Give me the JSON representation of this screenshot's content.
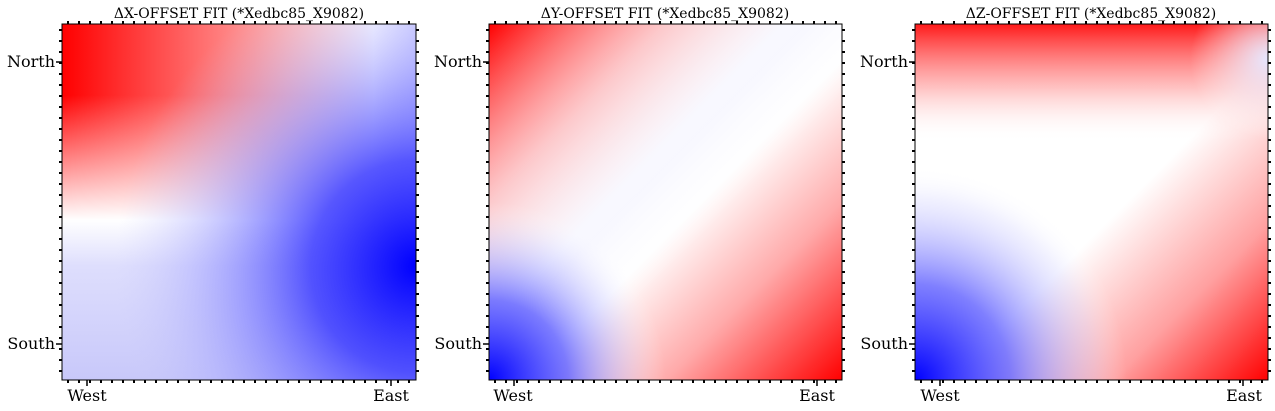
{
  "figure": {
    "panels": [
      {
        "title": "ΔX-OFFSET FIT (*Xedbc85_X9082)",
        "x_tick_labels": [
          "West",
          "East"
        ],
        "y_tick_labels": [
          "North",
          "South"
        ],
        "colors": {
          "top_left": "#ff0000",
          "bottom_left": "#c8c8fa",
          "bottom_right": "#0000ff"
        }
      },
      {
        "title": "ΔY-OFFSET FIT (*Xedbc85_X9082)",
        "x_tick_labels": [
          "West",
          "East"
        ],
        "y_tick_labels": [
          "North",
          "South"
        ],
        "colors": {
          "top_left": "#ff0000",
          "bottom_left": "#0000ff",
          "bottom_right": "#ff0000"
        }
      },
      {
        "title": "ΔZ-OFFSET FIT (*Xedbc85_X9082)",
        "x_tick_labels": [
          "West",
          "East"
        ],
        "y_tick_labels": [
          "North",
          "South"
        ],
        "colors": {
          "top_left": "#ff0000",
          "bottom_left": "#0000ff",
          "bottom_right": "#ff0000"
        }
      }
    ]
  },
  "chart_data": [
    {
      "type": "heatmap",
      "title": "ΔX-OFFSET FIT (*Xedbc85_X9082)",
      "colormap": "bwr",
      "xlabel": "",
      "ylabel": "",
      "x_tick_labels": [
        "West",
        "East"
      ],
      "y_tick_labels": [
        "North",
        "South"
      ],
      "grid_rows_north_to_south": [
        [
          1.0,
          0.75,
          0.3,
          -0.2
        ],
        [
          0.55,
          0.1,
          -0.45,
          -0.85
        ],
        [
          0.0,
          -0.4,
          -0.75,
          -1.0
        ],
        [
          -0.2,
          -0.3,
          -0.55,
          -0.85
        ]
      ]
    },
    {
      "type": "heatmap",
      "title": "ΔY-OFFSET FIT (*Xedbc85_X9082)",
      "colormap": "bwr",
      "xlabel": "",
      "ylabel": "",
      "x_tick_labels": [
        "West",
        "East"
      ],
      "y_tick_labels": [
        "North",
        "South"
      ],
      "grid_rows_north_to_south": [
        [
          0.75,
          0.2,
          0.05,
          0.25
        ],
        [
          0.2,
          -0.1,
          0.1,
          0.35
        ],
        [
          -0.3,
          -0.05,
          0.35,
          0.6
        ],
        [
          -1.0,
          -0.1,
          0.55,
          1.0
        ]
      ]
    },
    {
      "type": "heatmap",
      "title": "ΔZ-OFFSET FIT (*Xedbc85_X9082)",
      "colormap": "bwr",
      "xlabel": "",
      "ylabel": "",
      "x_tick_labels": [
        "West",
        "East"
      ],
      "y_tick_labels": [
        "North",
        "South"
      ],
      "grid_rows_north_to_south": [
        [
          0.8,
          0.45,
          0.15,
          -0.1
        ],
        [
          0.15,
          0.05,
          0.0,
          0.05
        ],
        [
          -0.6,
          -0.15,
          0.3,
          0.5
        ],
        [
          -1.0,
          -0.1,
          0.6,
          1.0
        ]
      ]
    }
  ]
}
